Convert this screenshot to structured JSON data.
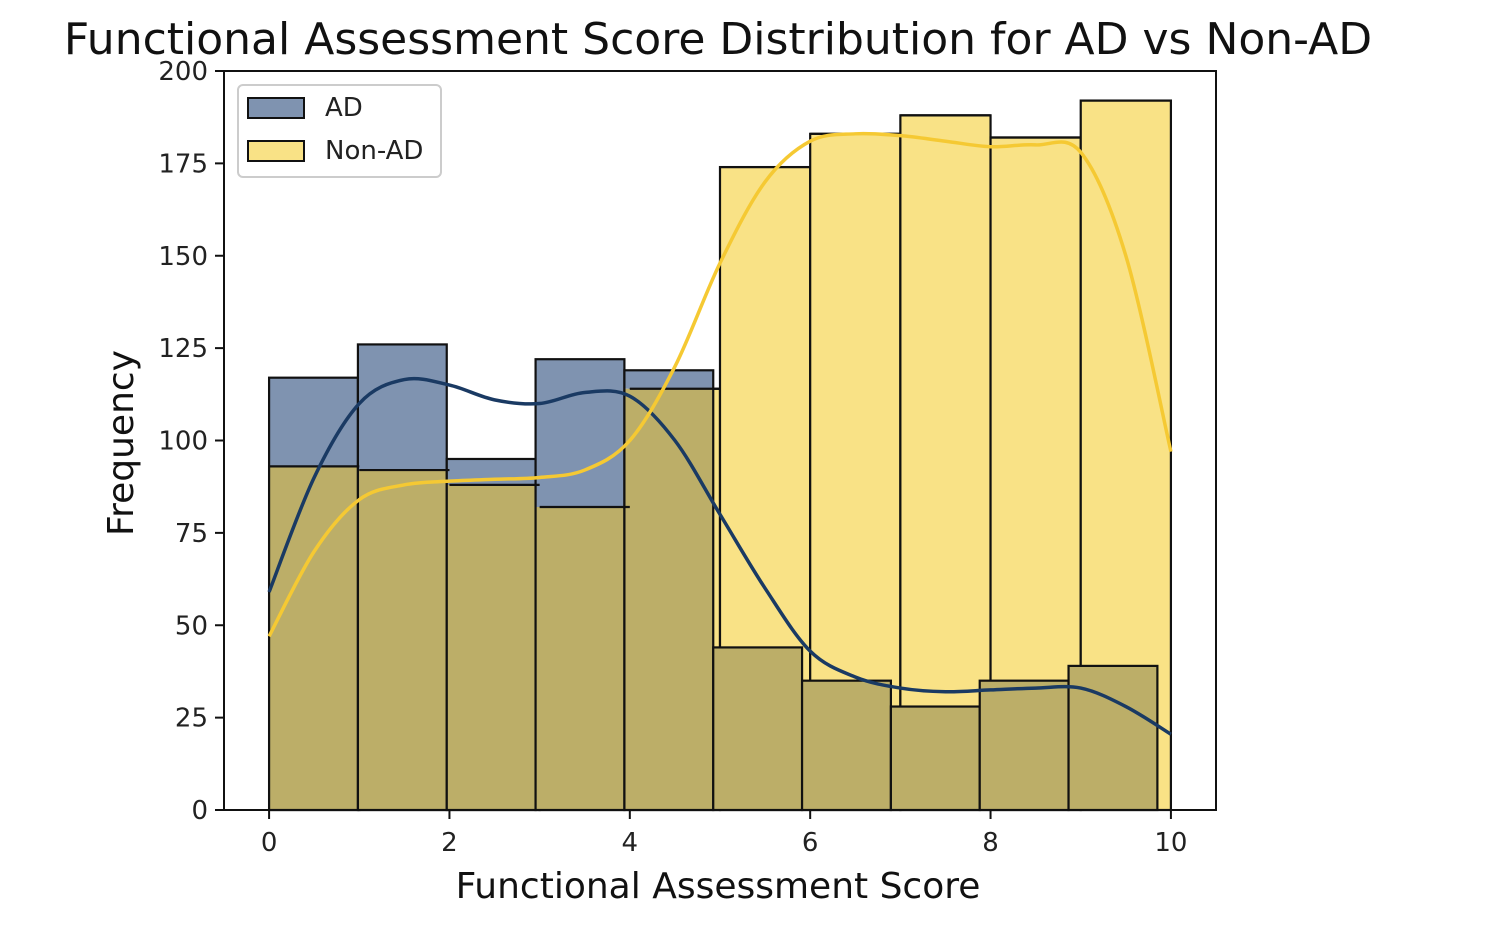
{
  "chart_data": {
    "type": "bar",
    "title": "Functional Assessment Score Distribution for AD vs Non-AD",
    "xlabel": "Functional Assessment Score",
    "ylabel": "Frequency",
    "xlim": [
      -0.5,
      10.5
    ],
    "ylim": [
      0,
      200
    ],
    "xticks": [
      0,
      2,
      4,
      6,
      8,
      10
    ],
    "yticks": [
      0,
      25,
      50,
      75,
      100,
      125,
      150,
      175,
      200
    ],
    "bin_edges": [
      0,
      1,
      2,
      3,
      4,
      5,
      6,
      7,
      8,
      9,
      10
    ],
    "legend_position": "top-left",
    "grid": false,
    "series": [
      {
        "name": "AD",
        "bin_start": 0,
        "bin_width": 0.985,
        "values": [
          117,
          126,
          95,
          122,
          119,
          44,
          35,
          28,
          35,
          39
        ],
        "fill_color": "#7f93b0",
        "kde_color": "#1a3a63",
        "kde": [
          [
            0,
            59
          ],
          [
            0.5,
            90
          ],
          [
            1,
            110
          ],
          [
            1.5,
            116.5
          ],
          [
            2,
            115
          ],
          [
            2.5,
            111
          ],
          [
            3,
            110
          ],
          [
            3.5,
            113
          ],
          [
            4,
            112
          ],
          [
            4.5,
            100
          ],
          [
            5,
            80
          ],
          [
            5.5,
            60
          ],
          [
            6,
            43
          ],
          [
            6.5,
            36
          ],
          [
            7,
            33
          ],
          [
            7.5,
            32
          ],
          [
            8,
            32.5
          ],
          [
            8.5,
            33
          ],
          [
            9,
            33
          ],
          [
            9.5,
            28
          ],
          [
            10,
            20.5
          ]
        ]
      },
      {
        "name": "Non-AD",
        "bin_start": 0,
        "bin_width": 1,
        "values": [
          93,
          92,
          88,
          82,
          114,
          174,
          183,
          188,
          182,
          192
        ],
        "fill_color": "#f9e286",
        "kde_color": "#f5c933",
        "kde": [
          [
            0,
            47
          ],
          [
            0.5,
            70
          ],
          [
            1,
            84
          ],
          [
            1.5,
            88
          ],
          [
            2,
            89
          ],
          [
            2.5,
            89.5
          ],
          [
            3,
            90
          ],
          [
            3.5,
            92
          ],
          [
            4,
            100
          ],
          [
            4.5,
            120
          ],
          [
            5,
            148
          ],
          [
            5.5,
            170
          ],
          [
            6,
            181
          ],
          [
            6.5,
            183
          ],
          [
            7,
            182.5
          ],
          [
            7.5,
            181
          ],
          [
            8,
            179.5
          ],
          [
            8.5,
            180
          ],
          [
            9,
            178
          ],
          [
            9.5,
            150
          ],
          [
            10,
            97
          ]
        ]
      }
    ],
    "overlap_color": "#bcae68"
  }
}
